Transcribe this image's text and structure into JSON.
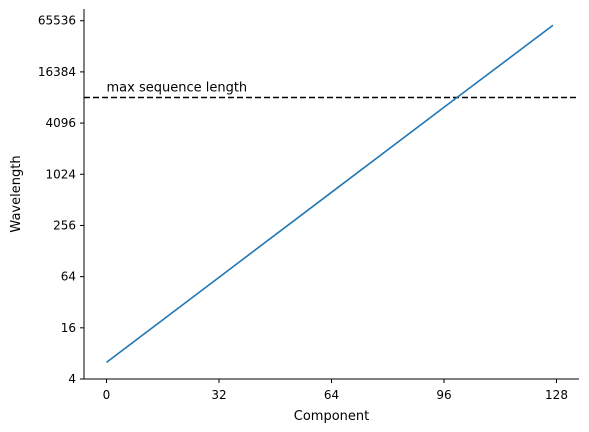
{
  "chart_data": {
    "type": "line",
    "title": "",
    "xlabel": "Component",
    "ylabel": "Wavelength",
    "xlim": [
      -6.4,
      134.4
    ],
    "ylim": [
      4,
      90000
    ],
    "yscale": "log2",
    "xticks": [
      0,
      32,
      64,
      96,
      128
    ],
    "xtick_labels": [
      "0",
      "32",
      "64",
      "96",
      "128"
    ],
    "yticks": [
      4,
      16,
      64,
      256,
      1024,
      4096,
      16384,
      65536
    ],
    "ytick_labels": [
      "4",
      "16",
      "64",
      "256",
      "1024",
      "4096",
      "16384",
      "65536"
    ],
    "grid": false,
    "spines": [
      "left",
      "bottom"
    ],
    "series": [
      {
        "color": "#1f77b4",
        "x": [
          0,
          32,
          64,
          96,
          127
        ],
        "y": [
          6.28,
          62.8,
          628,
          6283,
          58000
        ]
      }
    ],
    "hline": {
      "y": 8192,
      "color": "#000000",
      "style": "dashed",
      "label": "max sequence length"
    }
  }
}
